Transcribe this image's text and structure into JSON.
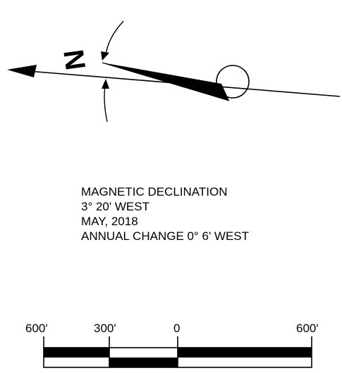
{
  "north_arrow": {
    "label": "N"
  },
  "declination": {
    "line1": "MAGNETIC DECLINATION",
    "line2": "3° 20' WEST",
    "line3": "MAY, 2018",
    "line4": "ANNUAL CHANGE 0° 6' WEST"
  },
  "scale_bar": {
    "labels": [
      "600'",
      "300'",
      "0",
      "600'"
    ],
    "units": "feet",
    "fill_color": "#000000"
  }
}
